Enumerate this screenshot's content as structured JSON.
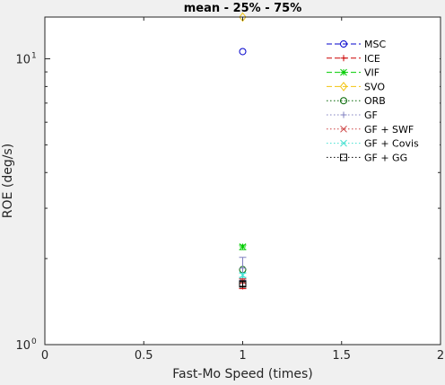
{
  "chart_data": {
    "type": "scatter",
    "title": "mean - 25% - 75%",
    "xlabel": "Fast-Mo Speed (times)",
    "ylabel": "ROE (deg/s)",
    "xlim": [
      0,
      2
    ],
    "ylim": [
      1,
      14
    ],
    "yscale": "log",
    "grid": false,
    "legend_position": "top-right",
    "x_ticks": [
      {
        "value": 0,
        "label": "0"
      },
      {
        "value": 0.5,
        "label": "0.5"
      },
      {
        "value": 1,
        "label": "1"
      },
      {
        "value": 1.5,
        "label": "1.5"
      },
      {
        "value": 2,
        "label": "2"
      }
    ],
    "y_ticks": [
      {
        "value": 1,
        "label": "10",
        "exp": "0"
      },
      {
        "value": 10,
        "label": "10",
        "exp": "1"
      }
    ],
    "series": [
      {
        "name": "MSC",
        "color": "#0000cc",
        "marker": "circle",
        "line": "dash",
        "x": 1,
        "mean": 10.6,
        "q25": 10.6,
        "q75": 10.6
      },
      {
        "name": "ICE",
        "color": "#cc0000",
        "marker": "plus",
        "line": "dash",
        "x": 1,
        "mean": 1.6,
        "q25": 1.57,
        "q75": 1.68
      },
      {
        "name": "VIF",
        "color": "#00cc00",
        "marker": "asterisk",
        "line": "dash",
        "x": 1,
        "mean": 2.2,
        "q25": 2.15,
        "q75": 2.23
      },
      {
        "name": "SVO",
        "color": "#f2c40f",
        "marker": "diamond",
        "line": "dash",
        "x": 1,
        "mean": 14.0,
        "q25": 14.0,
        "q75": 14.0
      },
      {
        "name": "ORB",
        "color": "#006400",
        "marker": "circle",
        "line": "dot",
        "x": 1,
        "mean": 1.83,
        "q25": 1.83,
        "q75": 1.83
      },
      {
        "name": "GF",
        "color": "#8080c0",
        "marker": "plus",
        "line": "dot",
        "x": 1,
        "mean": 1.85,
        "q25": 1.68,
        "q75": 2.02
      },
      {
        "name": "GF + SWF",
        "color": "#cc4040",
        "marker": "cross",
        "line": "dot",
        "x": 1,
        "mean": 1.67,
        "q25": 1.64,
        "q75": 1.7
      },
      {
        "name": "GF + Covis",
        "color": "#40e0d0",
        "marker": "cross",
        "line": "dot",
        "x": 1,
        "mean": 1.75,
        "q25": 1.72,
        "q75": 1.78
      },
      {
        "name": "GF + GG",
        "color": "#000000",
        "marker": "square",
        "line": "dot",
        "x": 1,
        "mean": 1.63,
        "q25": 1.6,
        "q75": 1.66
      }
    ]
  }
}
